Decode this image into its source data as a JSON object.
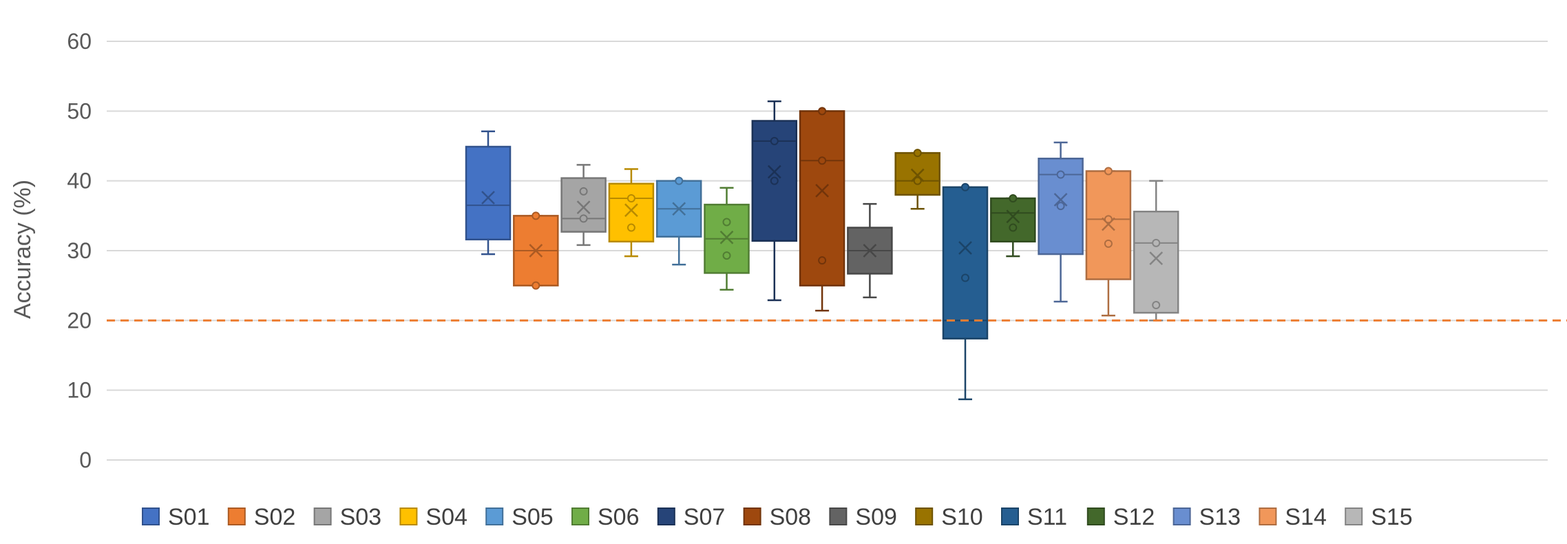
{
  "chart_data": {
    "type": "box",
    "title": "",
    "xlabel": "",
    "ylabel": "Accuracy (%)",
    "ylim": [
      0,
      60
    ],
    "yticks": [
      0,
      10,
      20,
      30,
      40,
      50,
      60
    ],
    "grid": true,
    "legend_position": "bottom",
    "reference_line": {
      "value": 20,
      "color": "#ED7D31",
      "style": "dashed"
    },
    "series": [
      {
        "name": "S01",
        "color": "#4472C4",
        "min": 29.5,
        "q1": 31.6,
        "median": 36.5,
        "q3": 44.9,
        "max": 47.1,
        "mean": 37.6,
        "points": []
      },
      {
        "name": "S02",
        "color": "#ED7D31",
        "min": 25.0,
        "q1": 25.0,
        "median": 30.0,
        "q3": 35.0,
        "max": 35.0,
        "mean": 30.0,
        "points": [
          25.0,
          35.0
        ]
      },
      {
        "name": "S03",
        "color": "#A5A5A5",
        "min": 30.8,
        "q1": 32.7,
        "median": 34.6,
        "q3": 40.4,
        "max": 42.3,
        "mean": 36.2,
        "points": [
          34.6,
          38.5
        ]
      },
      {
        "name": "S04",
        "color": "#FFC000",
        "min": 29.2,
        "q1": 31.3,
        "median": 37.5,
        "q3": 39.6,
        "max": 41.7,
        "mean": 35.8,
        "points": [
          33.3,
          37.5
        ]
      },
      {
        "name": "S05",
        "color": "#5B9BD5",
        "min": 28.0,
        "q1": 32.0,
        "median": 36.0,
        "q3": 40.0,
        "max": 40.0,
        "mean": 36.0,
        "points": [
          40.0
        ]
      },
      {
        "name": "S06",
        "color": "#70AD47",
        "min": 24.4,
        "q1": 26.8,
        "median": 31.7,
        "q3": 36.6,
        "max": 39.0,
        "mean": 31.9,
        "points": [
          29.3,
          34.1
        ]
      },
      {
        "name": "S07",
        "color": "#264478",
        "min": 22.9,
        "q1": 31.4,
        "median": 45.7,
        "q3": 48.6,
        "max": 51.4,
        "mean": 41.3,
        "points": [
          40.0,
          45.7
        ]
      },
      {
        "name": "S08",
        "color": "#9E480E",
        "min": 21.4,
        "q1": 25.0,
        "median": 42.9,
        "q3": 50.0,
        "max": 50.0,
        "mean": 38.6,
        "points": [
          28.6,
          42.9,
          50.0
        ]
      },
      {
        "name": "S09",
        "color": "#636363",
        "min": 23.3,
        "q1": 26.7,
        "median": 30.0,
        "q3": 33.3,
        "max": 36.7,
        "mean": 30.0,
        "points": []
      },
      {
        "name": "S10",
        "color": "#997300",
        "min": 36.0,
        "q1": 38.0,
        "median": 40.0,
        "q3": 44.0,
        "max": 44.0,
        "mean": 40.8,
        "points": [
          40.0,
          44.0
        ]
      },
      {
        "name": "S11",
        "color": "#255E91",
        "min": 8.7,
        "q1": 17.4,
        "median": 20.0,
        "q3": 39.1,
        "max": 39.1,
        "mean": 30.4,
        "points": [
          26.1,
          39.1
        ]
      },
      {
        "name": "S12",
        "color": "#43682B",
        "min": 29.2,
        "q1": 31.3,
        "median": 35.4,
        "q3": 37.5,
        "max": 37.5,
        "mean": 34.9,
        "points": [
          33.3,
          37.5
        ]
      },
      {
        "name": "S13",
        "color": "#698ED0",
        "min": 22.7,
        "q1": 29.5,
        "median": 40.9,
        "q3": 43.2,
        "max": 45.5,
        "mean": 37.3,
        "points": [
          36.4,
          40.9
        ]
      },
      {
        "name": "S14",
        "color": "#F1975A",
        "min": 20.7,
        "q1": 25.9,
        "median": 34.5,
        "q3": 41.4,
        "max": 41.4,
        "mean": 33.8,
        "points": [
          31.0,
          34.5,
          41.4
        ]
      },
      {
        "name": "S15",
        "color": "#B7B7B7",
        "min": 20.0,
        "q1": 21.1,
        "median": 31.1,
        "q3": 35.6,
        "max": 40.0,
        "mean": 28.9,
        "points": [
          22.2,
          31.1
        ]
      }
    ]
  }
}
